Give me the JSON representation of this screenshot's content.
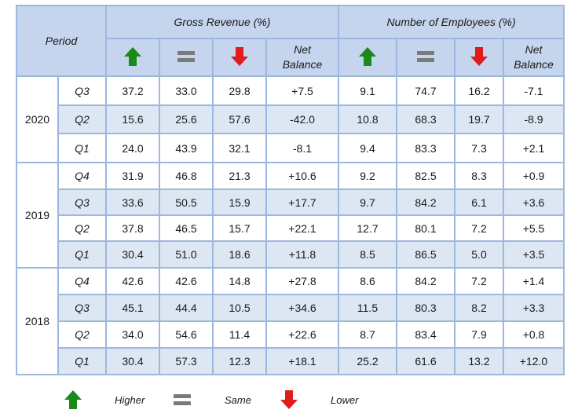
{
  "header": {
    "period": "Period",
    "gross_revenue": "Gross Revenue (%)",
    "employees": "Number of Employees (%)",
    "net_balance_line1": "Net",
    "net_balance_line2": "Balance"
  },
  "icons": {
    "higher": "up-arrow-green",
    "same": "equals-grey",
    "lower": "down-arrow-red",
    "green": "#1a8a1a",
    "red": "#e01b1b",
    "grey": "#7a7a7a"
  },
  "years": [
    {
      "year": "2020",
      "rows": [
        {
          "q": "Q3",
          "g": [
            "37.2",
            "33.0",
            "29.8",
            "+7.5"
          ],
          "e": [
            "9.1",
            "74.7",
            "16.2",
            "-7.1"
          ]
        },
        {
          "q": "Q2",
          "g": [
            "15.6",
            "25.6",
            "57.6",
            "-42.0"
          ],
          "e": [
            "10.8",
            "68.3",
            "19.7",
            "-8.9"
          ]
        },
        {
          "q": "Q1",
          "g": [
            "24.0",
            "43.9",
            "32.1",
            "-8.1"
          ],
          "e": [
            "9.4",
            "83.3",
            "7.3",
            "+2.1"
          ]
        }
      ]
    },
    {
      "year": "2019",
      "rows": [
        {
          "q": "Q4",
          "g": [
            "31.9",
            "46.8",
            "21.3",
            "+10.6"
          ],
          "e": [
            "9.2",
            "82.5",
            "8.3",
            "+0.9"
          ]
        },
        {
          "q": "Q3",
          "g": [
            "33.6",
            "50.5",
            "15.9",
            "+17.7"
          ],
          "e": [
            "9.7",
            "84.2",
            "6.1",
            "+3.6"
          ]
        },
        {
          "q": "Q2",
          "g": [
            "37.8",
            "46.5",
            "15.7",
            "+22.1"
          ],
          "e": [
            "12.7",
            "80.1",
            "7.2",
            "+5.5"
          ]
        },
        {
          "q": "Q1",
          "g": [
            "30.4",
            "51.0",
            "18.6",
            "+11.8"
          ],
          "e": [
            "8.5",
            "86.5",
            "5.0",
            "+3.5"
          ]
        }
      ]
    },
    {
      "year": "2018",
      "rows": [
        {
          "q": "Q4",
          "g": [
            "42.6",
            "42.6",
            "14.8",
            "+27.8"
          ],
          "e": [
            "8.6",
            "84.2",
            "7.2",
            "+1.4"
          ]
        },
        {
          "q": "Q3",
          "g": [
            "45.1",
            "44.4",
            "10.5",
            "+34.6"
          ],
          "e": [
            "11.5",
            "80.3",
            "8.2",
            "+3.3"
          ]
        },
        {
          "q": "Q2",
          "g": [
            "34.0",
            "54.6",
            "11.4",
            "+22.6"
          ],
          "e": [
            "8.7",
            "83.4",
            "7.9",
            "+0.8"
          ]
        },
        {
          "q": "Q1",
          "g": [
            "30.4",
            "57.3",
            "12.3",
            "+18.1"
          ],
          "e": [
            "25.2",
            "61.6",
            "13.2",
            "+12.0"
          ]
        }
      ]
    }
  ],
  "legend": {
    "higher": "Higher",
    "same": "Same",
    "lower": "Lower"
  }
}
